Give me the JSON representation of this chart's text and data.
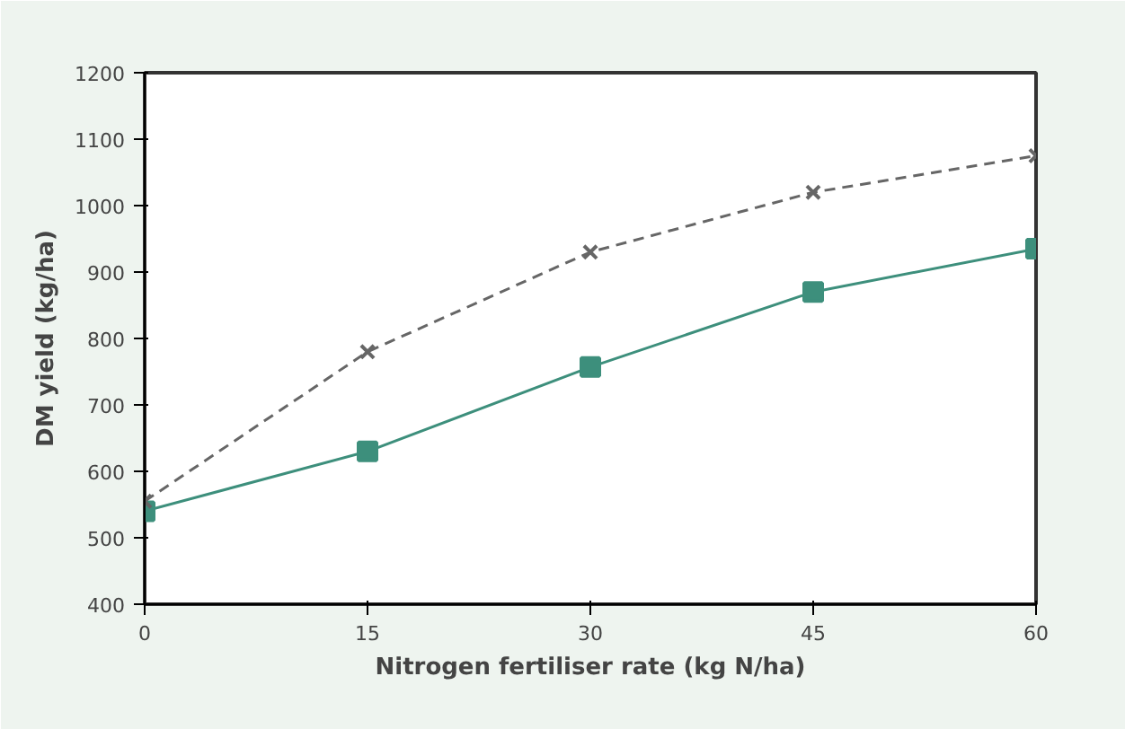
{
  "chart_data": {
    "type": "line",
    "xlabel": "Nitrogen fertiliser rate (kg N/ha)",
    "ylabel": "DM yield (kg/ha)",
    "x": [
      0,
      15,
      30,
      45,
      60
    ],
    "series": [
      {
        "color": "#3d8f7c",
        "values": [
          540,
          630,
          757,
          870,
          935
        ],
        "marker": "square",
        "line_style": "solid"
      },
      {
        "color": "#666666",
        "values": [
          555,
          780,
          930,
          1020,
          1075
        ],
        "marker": "cross",
        "line_style": "dashed"
      }
    ],
    "xlim": [
      0,
      60
    ],
    "xticks": [
      0,
      15,
      30,
      45,
      60
    ],
    "ylim": [
      400,
      1200
    ],
    "yticks": [
      400,
      500,
      600,
      700,
      800,
      900,
      1000,
      1100,
      1200
    ],
    "grid": false
  }
}
